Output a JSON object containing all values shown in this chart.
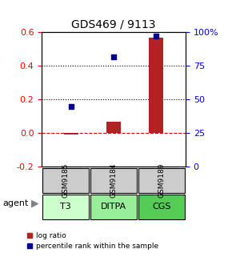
{
  "title": "GDS469 / 9113",
  "samples": [
    "GSM9185",
    "GSM9184",
    "GSM9189"
  ],
  "agents": [
    "T3",
    "DITPA",
    "CGS"
  ],
  "log_ratios": [
    -0.01,
    0.07,
    0.57
  ],
  "percentiles": [
    45,
    82,
    97
  ],
  "ylim_left": [
    -0.2,
    0.6
  ],
  "ylim_right": [
    0,
    100
  ],
  "yticks_left": [
    -0.2,
    0.0,
    0.2,
    0.4,
    0.6
  ],
  "yticks_right": [
    0,
    25,
    50,
    75,
    100
  ],
  "ytick_labels_right": [
    "0",
    "25",
    "50",
    "75",
    "100%"
  ],
  "bar_color": "#b22222",
  "square_color": "#00008b",
  "zero_line_color": "#cc0000",
  "grid_color": "#000000",
  "agent_colors": [
    "#ccffcc",
    "#99ee99",
    "#55cc55"
  ],
  "gsm_bg": "#cccccc",
  "legend_log": "log ratio",
  "legend_pct": "percentile rank within the sample"
}
